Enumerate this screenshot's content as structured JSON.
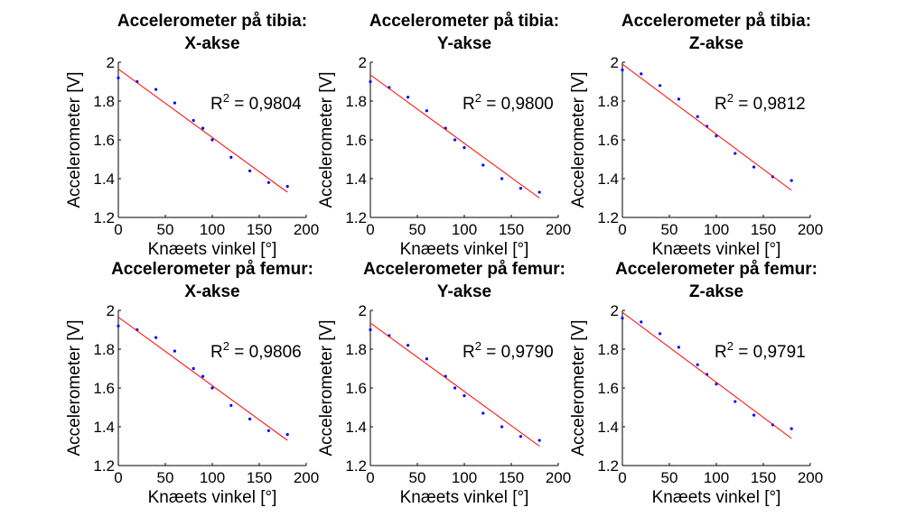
{
  "chart_data": [
    {
      "type": "scatter",
      "title_lines": [
        "Accelerometer på tibia:",
        "X-akse"
      ],
      "xlabel": "Knæets vinkel [°]",
      "ylabel": "Accelerometer [V]",
      "xlim": [
        0,
        200
      ],
      "ylim": [
        1.2,
        2
      ],
      "xticks": [
        "0",
        "50",
        "100",
        "150",
        "200"
      ],
      "yticks": [
        "1.2",
        "1.4",
        "1.6",
        "1.8",
        "2"
      ],
      "r2_value": "= 0,9804",
      "grid": false,
      "series": [
        {
          "type": "scatter",
          "color": "#0000ff",
          "x": [
            0,
            20,
            40,
            60,
            80,
            90,
            100,
            120,
            140,
            160,
            180
          ],
          "y": [
            1.92,
            1.9,
            1.86,
            1.79,
            1.7,
            1.66,
            1.6,
            1.51,
            1.44,
            1.38,
            1.36
          ]
        },
        {
          "type": "line",
          "color": "#ff0000",
          "x": [
            0,
            180
          ],
          "y": [
            1.965,
            1.33
          ]
        }
      ]
    },
    {
      "type": "scatter",
      "title_lines": [
        "Accelerometer på tibia:",
        "Y-akse"
      ],
      "xlabel": "Knæets vinkel [°]",
      "ylabel": "Accelerometer [V]",
      "xlim": [
        0,
        200
      ],
      "ylim": [
        1.2,
        2
      ],
      "xticks": [
        "0",
        "50",
        "100",
        "150",
        "200"
      ],
      "yticks": [
        "1.2",
        "1.4",
        "1.6",
        "1.8",
        "2"
      ],
      "r2_value": "= 0,9800",
      "grid": false,
      "series": [
        {
          "type": "scatter",
          "color": "#0000ff",
          "x": [
            0,
            20,
            40,
            60,
            80,
            90,
            100,
            120,
            140,
            160,
            180
          ],
          "y": [
            1.9,
            1.87,
            1.82,
            1.75,
            1.66,
            1.6,
            1.56,
            1.47,
            1.4,
            1.35,
            1.33
          ]
        },
        {
          "type": "line",
          "color": "#ff0000",
          "x": [
            0,
            180
          ],
          "y": [
            1.935,
            1.3
          ]
        }
      ]
    },
    {
      "type": "scatter",
      "title_lines": [
        "Accelerometer på tibia:",
        "Z-akse"
      ],
      "xlabel": "Knæets vinkel [°]",
      "ylabel": "Accelerometer [V]",
      "xlim": [
        0,
        200
      ],
      "ylim": [
        1.2,
        2
      ],
      "xticks": [
        "0",
        "50",
        "100",
        "150",
        "200"
      ],
      "yticks": [
        "1.2",
        "1.4",
        "1.6",
        "1.8",
        "2"
      ],
      "r2_value": "= 0,9812",
      "grid": false,
      "series": [
        {
          "type": "scatter",
          "color": "#0000ff",
          "x": [
            0,
            20,
            40,
            60,
            80,
            90,
            100,
            120,
            140,
            160,
            180
          ],
          "y": [
            1.96,
            1.94,
            1.88,
            1.81,
            1.72,
            1.67,
            1.62,
            1.53,
            1.46,
            1.41,
            1.39
          ]
        },
        {
          "type": "line",
          "color": "#ff0000",
          "x": [
            0,
            180
          ],
          "y": [
            1.99,
            1.34
          ]
        }
      ]
    },
    {
      "type": "scatter",
      "title_lines": [
        "Accelerometer på femur:",
        "X-akse"
      ],
      "xlabel": "Knæets vinkel [°]",
      "ylabel": "Accelerometer [V]",
      "xlim": [
        0,
        200
      ],
      "ylim": [
        1.2,
        2
      ],
      "xticks": [
        "0",
        "50",
        "100",
        "150",
        "200"
      ],
      "yticks": [
        "1.2",
        "1.4",
        "1.6",
        "1.8",
        "2"
      ],
      "r2_value": "= 0,9806",
      "grid": false,
      "series": [
        {
          "type": "scatter",
          "color": "#0000ff",
          "x": [
            0,
            20,
            40,
            60,
            80,
            90,
            100,
            120,
            140,
            160,
            180
          ],
          "y": [
            1.92,
            1.9,
            1.86,
            1.79,
            1.7,
            1.66,
            1.6,
            1.51,
            1.44,
            1.38,
            1.36
          ]
        },
        {
          "type": "line",
          "color": "#ff0000",
          "x": [
            0,
            180
          ],
          "y": [
            1.965,
            1.33
          ]
        }
      ]
    },
    {
      "type": "scatter",
      "title_lines": [
        "Accelerometer på femur:",
        "Y-akse"
      ],
      "xlabel": "Knæets vinkel [°]",
      "ylabel": "Accelerometer [V]",
      "xlim": [
        0,
        200
      ],
      "ylim": [
        1.2,
        2
      ],
      "xticks": [
        "0",
        "50",
        "100",
        "150",
        "200"
      ],
      "yticks": [
        "1.2",
        "1.4",
        "1.6",
        "1.8",
        "2"
      ],
      "r2_value": "= 0,9790",
      "grid": false,
      "series": [
        {
          "type": "scatter",
          "color": "#0000ff",
          "x": [
            0,
            20,
            40,
            60,
            80,
            90,
            100,
            120,
            140,
            160,
            180
          ],
          "y": [
            1.9,
            1.87,
            1.82,
            1.75,
            1.66,
            1.6,
            1.56,
            1.47,
            1.4,
            1.35,
            1.33
          ]
        },
        {
          "type": "line",
          "color": "#ff0000",
          "x": [
            0,
            180
          ],
          "y": [
            1.935,
            1.3
          ]
        }
      ]
    },
    {
      "type": "scatter",
      "title_lines": [
        "Accelerometer på femur:",
        "Z-akse"
      ],
      "xlabel": "Knæets vinkel [°]",
      "ylabel": "Accelerometer [V]",
      "xlim": [
        0,
        200
      ],
      "ylim": [
        1.2,
        2
      ],
      "xticks": [
        "0",
        "50",
        "100",
        "150",
        "200"
      ],
      "yticks": [
        "1.2",
        "1.4",
        "1.6",
        "1.8",
        "2"
      ],
      "r2_value": "= 0,9791",
      "grid": false,
      "series": [
        {
          "type": "scatter",
          "color": "#0000ff",
          "x": [
            0,
            20,
            40,
            60,
            80,
            90,
            100,
            120,
            140,
            160,
            180
          ],
          "y": [
            1.96,
            1.94,
            1.88,
            1.81,
            1.72,
            1.67,
            1.62,
            1.53,
            1.46,
            1.41,
            1.39
          ]
        },
        {
          "type": "line",
          "color": "#ff0000",
          "x": [
            0,
            180
          ],
          "y": [
            1.99,
            1.34
          ]
        }
      ]
    }
  ]
}
